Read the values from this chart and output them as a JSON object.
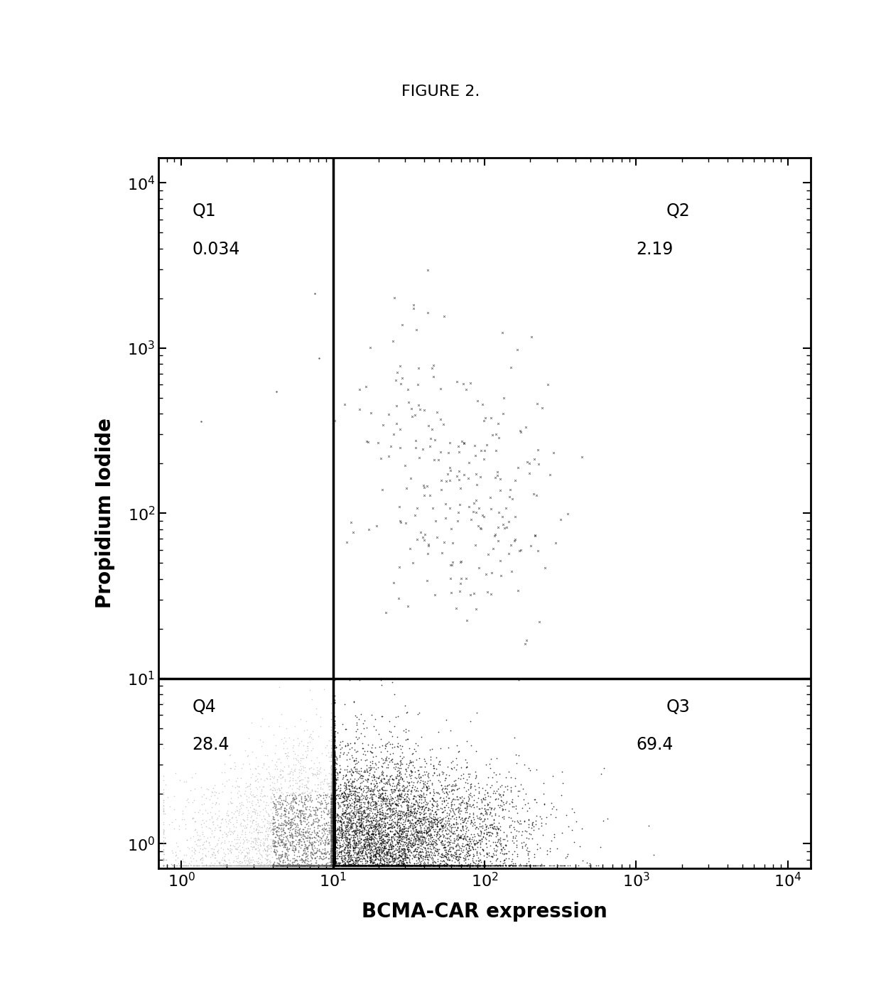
{
  "title": "FIGURE 2.",
  "xlabel": "BCMA-CAR expression",
  "ylabel": "Propidium Iodide",
  "gate_x_log": 1.0,
  "gate_y_log": 1.0,
  "xlim_log": [
    -0.15,
    4.15
  ],
  "ylim_log": [
    -0.15,
    4.15
  ],
  "quadrant_labels": [
    "Q1",
    "Q2",
    "Q3",
    "Q4"
  ],
  "quadrant_values": [
    "0.034",
    "2.19",
    "69.4",
    "28.4"
  ],
  "background_color": "#ffffff",
  "seed": 42,
  "n_total": 12000
}
